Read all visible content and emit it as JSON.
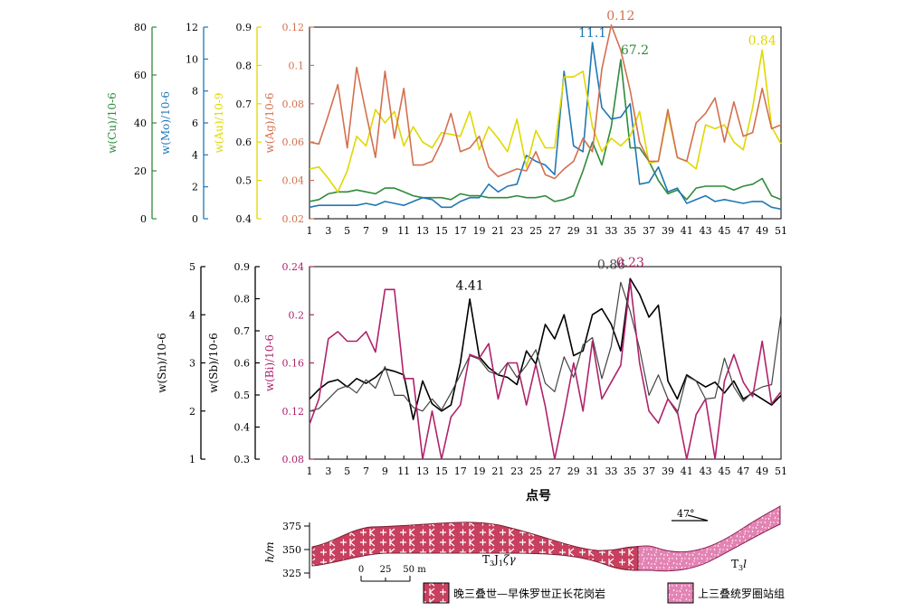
{
  "colors": {
    "cu": "#2e8b3a",
    "mo": "#1f78b4",
    "au": "#e0d800",
    "ag": "#d2704f",
    "sn": "#000000",
    "sb": "#444444",
    "bi": "#b0226a",
    "granite": "#c8405f",
    "formation": "#e383b4"
  },
  "chart_data": [
    {
      "type": "line",
      "x_label": "",
      "x": [
        1,
        2,
        3,
        4,
        5,
        6,
        7,
        8,
        9,
        10,
        11,
        12,
        13,
        14,
        15,
        16,
        17,
        18,
        19,
        20,
        21,
        22,
        23,
        24,
        25,
        26,
        27,
        28,
        29,
        30,
        31,
        32,
        33,
        34,
        35,
        36,
        37,
        38,
        39,
        40,
        41,
        42,
        43,
        44,
        45,
        46,
        47,
        48,
        49,
        50,
        51
      ],
      "x_ticks": [
        1,
        3,
        5,
        7,
        9,
        11,
        13,
        15,
        17,
        19,
        21,
        23,
        25,
        27,
        29,
        31,
        33,
        35,
        37,
        39,
        41,
        43,
        45,
        47,
        49,
        51
      ],
      "axes": [
        {
          "id": "cu",
          "label": "w(Cu)/10-6",
          "min": 0,
          "max": 80,
          "ticks": [
            0,
            20,
            40,
            60,
            80
          ]
        },
        {
          "id": "mo",
          "label": "w(Mo)/10-6",
          "min": 0,
          "max": 12,
          "ticks": [
            0,
            2,
            4,
            6,
            8,
            10,
            12
          ]
        },
        {
          "id": "au",
          "label": "w(Au)/10-9",
          "min": 0.4,
          "max": 0.9,
          "ticks": [
            0.4,
            0.5,
            0.6,
            0.7,
            0.8,
            0.9
          ]
        },
        {
          "id": "ag",
          "label": "w(Ag)/10-6",
          "min": 0.02,
          "max": 0.12,
          "ticks": [
            0.02,
            0.04,
            0.06,
            0.08,
            0.1,
            0.12
          ]
        }
      ],
      "series": [
        {
          "name": "Cu",
          "axis": "ag",
          "color_key": "cu",
          "values": [
            0.029,
            0.03,
            0.033,
            0.034,
            0.034,
            0.035,
            0.034,
            0.033,
            0.036,
            0.036,
            0.034,
            0.032,
            0.031,
            0.031,
            0.031,
            0.03,
            0.033,
            0.032,
            0.032,
            0.031,
            0.031,
            0.031,
            0.032,
            0.031,
            0.031,
            0.032,
            0.029,
            0.03,
            0.032,
            0.045,
            0.06,
            0.048,
            0.068,
            0.103,
            0.057,
            0.057,
            0.05,
            0.04,
            0.033,
            0.035,
            0.03,
            0.036,
            0.037,
            0.037,
            0.037,
            0.035,
            0.037,
            0.038,
            0.041,
            0.032,
            0.03
          ]
        },
        {
          "name": "Mo",
          "axis": "ag",
          "color_key": "mo",
          "values": [
            0.026,
            0.027,
            0.027,
            0.027,
            0.027,
            0.027,
            0.028,
            0.027,
            0.029,
            0.028,
            0.027,
            0.029,
            0.031,
            0.03,
            0.026,
            0.026,
            0.029,
            0.031,
            0.031,
            0.038,
            0.034,
            0.037,
            0.038,
            0.053,
            0.05,
            0.048,
            0.043,
            0.097,
            0.058,
            0.055,
            0.112,
            0.078,
            0.072,
            0.073,
            0.08,
            0.038,
            0.039,
            0.047,
            0.034,
            0.036,
            0.028,
            0.03,
            0.032,
            0.029,
            0.03,
            0.029,
            0.028,
            0.029,
            0.029,
            0.026,
            0.025
          ]
        },
        {
          "name": "Au",
          "axis": "ag",
          "color_key": "au",
          "values": [
            0.046,
            0.047,
            0.041,
            0.034,
            0.045,
            0.063,
            0.058,
            0.077,
            0.07,
            0.076,
            0.058,
            0.068,
            0.06,
            0.057,
            0.065,
            0.064,
            0.063,
            0.076,
            0.056,
            0.068,
            0.062,
            0.055,
            0.072,
            0.047,
            0.066,
            0.057,
            0.057,
            0.094,
            0.094,
            0.097,
            0.068,
            0.055,
            0.062,
            0.058,
            0.063,
            0.076,
            0.049,
            0.05,
            0.075,
            0.052,
            0.05,
            0.046,
            0.069,
            0.067,
            0.069,
            0.06,
            0.056,
            0.078,
            0.108,
            0.068,
            0.059
          ]
        },
        {
          "name": "Ag",
          "axis": "ag",
          "color_key": "ag",
          "values": [
            0.06,
            0.059,
            0.074,
            0.09,
            0.057,
            0.099,
            0.075,
            0.052,
            0.097,
            0.062,
            0.088,
            0.048,
            0.048,
            0.05,
            0.06,
            0.075,
            0.055,
            0.057,
            0.063,
            0.047,
            0.042,
            0.044,
            0.046,
            0.045,
            0.055,
            0.043,
            0.041,
            0.046,
            0.05,
            0.062,
            0.055,
            0.098,
            0.121,
            0.108,
            0.087,
            0.06,
            0.05,
            0.05,
            0.077,
            0.052,
            0.05,
            0.07,
            0.075,
            0.083,
            0.06,
            0.081,
            0.063,
            0.065,
            0.088,
            0.067,
            0.069
          ]
        }
      ],
      "annotations": [
        {
          "text": "11.1",
          "x": 31,
          "y": 0.113,
          "color_key": "mo"
        },
        {
          "text": "0.12",
          "x": 34,
          "y": 0.122,
          "color_key": "ag"
        },
        {
          "text": "67.2",
          "x": 35.5,
          "y": 0.104,
          "color_key": "cu"
        },
        {
          "text": "0.84",
          "x": 49,
          "y": 0.109,
          "color_key": "au"
        }
      ]
    },
    {
      "type": "line",
      "x_label": "点号",
      "x": [
        1,
        2,
        3,
        4,
        5,
        6,
        7,
        8,
        9,
        10,
        11,
        12,
        13,
        14,
        15,
        16,
        17,
        18,
        19,
        20,
        21,
        22,
        23,
        24,
        25,
        26,
        27,
        28,
        29,
        30,
        31,
        32,
        33,
        34,
        35,
        36,
        37,
        38,
        39,
        40,
        41,
        42,
        43,
        44,
        45,
        46,
        47,
        48,
        49,
        50,
        51
      ],
      "x_ticks": [
        1,
        3,
        5,
        7,
        9,
        11,
        13,
        15,
        17,
        19,
        21,
        23,
        25,
        27,
        29,
        31,
        33,
        35,
        37,
        39,
        41,
        43,
        45,
        47,
        49,
        51
      ],
      "axes": [
        {
          "id": "sn",
          "label": "w(Sn)/10-6",
          "min": 1,
          "max": 5,
          "ticks": [
            1,
            2,
            3,
            4,
            5
          ]
        },
        {
          "id": "sb",
          "label": "w(Sb)/10-6",
          "min": 0.3,
          "max": 0.9,
          "ticks": [
            0.3,
            0.4,
            0.5,
            0.6,
            0.7,
            0.8,
            0.9
          ]
        },
        {
          "id": "bi",
          "label": "w(Bi)/10-6",
          "min": 0.08,
          "max": 0.24,
          "ticks": [
            0.08,
            0.12,
            0.16,
            0.2,
            0.24
          ]
        }
      ],
      "series": [
        {
          "name": "Sn",
          "axis": "bi",
          "color_key": "sn",
          "values": [
            0.13,
            0.138,
            0.144,
            0.146,
            0.14,
            0.147,
            0.143,
            0.148,
            0.155,
            0.153,
            0.15,
            0.113,
            0.145,
            0.126,
            0.12,
            0.125,
            0.16,
            0.213,
            0.165,
            0.156,
            0.15,
            0.148,
            0.142,
            0.17,
            0.159,
            0.192,
            0.18,
            0.2,
            0.166,
            0.17,
            0.2,
            0.205,
            0.192,
            0.17,
            0.23,
            0.217,
            0.198,
            0.208,
            0.145,
            0.13,
            0.15,
            0.145,
            0.14,
            0.144,
            0.135,
            0.145,
            0.13,
            0.135,
            0.13,
            0.125,
            0.133
          ]
        },
        {
          "name": "Sb",
          "axis": "bi",
          "color_key": "sb",
          "values": [
            0.12,
            0.122,
            0.13,
            0.138,
            0.141,
            0.135,
            0.146,
            0.139,
            0.157,
            0.133,
            0.133,
            0.123,
            0.12,
            0.13,
            0.121,
            0.135,
            0.15,
            0.166,
            0.163,
            0.153,
            0.15,
            0.16,
            0.148,
            0.158,
            0.171,
            0.143,
            0.136,
            0.165,
            0.148,
            0.175,
            0.181,
            0.147,
            0.174,
            0.227,
            0.203,
            0.172,
            0.133,
            0.15,
            0.13,
            0.118,
            0.149,
            0.145,
            0.13,
            0.131,
            0.164,
            0.14,
            0.128,
            0.136,
            0.14,
            0.142,
            0.2
          ]
        },
        {
          "name": "Bi",
          "axis": "bi",
          "color_key": "bi",
          "values": [
            0.109,
            0.13,
            0.18,
            0.186,
            0.178,
            0.178,
            0.186,
            0.169,
            0.221,
            0.221,
            0.147,
            0.147,
            0.08,
            0.12,
            0.08,
            0.115,
            0.125,
            0.167,
            0.164,
            0.176,
            0.13,
            0.16,
            0.16,
            0.125,
            0.159,
            0.124,
            0.08,
            0.118,
            0.16,
            0.12,
            0.178,
            0.13,
            0.144,
            0.158,
            0.228,
            0.16,
            0.12,
            0.11,
            0.13,
            0.12,
            0.08,
            0.117,
            0.13,
            0.08,
            0.145,
            0.167,
            0.144,
            0.132,
            0.178,
            0.126,
            0.136
          ]
        }
      ],
      "annotations": [
        {
          "text": "4.41",
          "x": 18,
          "y": 0.218,
          "color_key": "sn"
        },
        {
          "text": "0.86",
          "x": 33,
          "y": 0.235,
          "color_key": "sb"
        },
        {
          "text": "0.23",
          "x": 35,
          "y": 0.237,
          "color_key": "bi"
        }
      ]
    },
    {
      "type": "area",
      "ylabel": "h/m",
      "y_ticks": [
        375,
        350,
        325
      ],
      "y_min": 325,
      "y_max": 375,
      "scale_bar": {
        "ticks": [
          "0",
          "25",
          "50 m"
        ]
      },
      "dip": "47°",
      "units": [
        {
          "label": "T3J1ζγ",
          "text_parts": [
            "T",
            "3",
            "J",
            "1",
            "ζγ"
          ],
          "color_key": "granite"
        },
        {
          "label": "T3l",
          "text_parts": [
            "T",
            "3",
            "l"
          ],
          "color_key": "formation"
        }
      ]
    }
  ],
  "legend": [
    {
      "label": "晚三叠世—早侏罗世正长花岗岩",
      "color_key": "granite"
    },
    {
      "label": "上三叠统罗圈站组",
      "color_key": "formation"
    }
  ]
}
